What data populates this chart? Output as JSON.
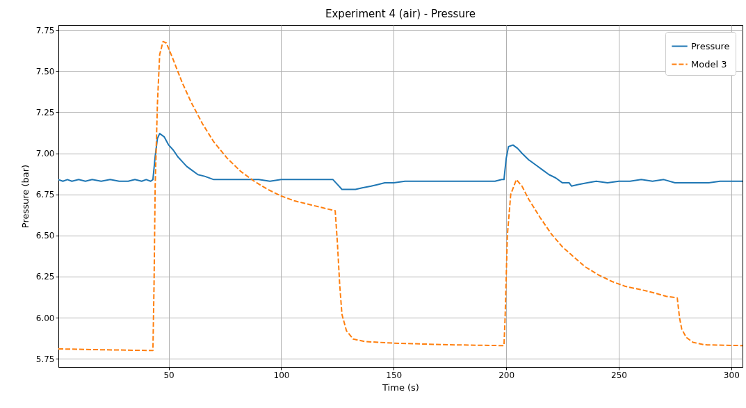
{
  "chart_data": {
    "type": "line",
    "title": "Experiment 4 (air) - Pressure",
    "xlabel": "Time (s)",
    "ylabel": "Pressure (bar)",
    "xlim": [
      1,
      305
    ],
    "xticks": [
      50,
      100,
      150,
      200,
      250,
      300
    ],
    "ylim": [
      5.7,
      7.78
    ],
    "yticks": [
      5.75,
      {
        "value": 6,
        "label": "6.00"
      },
      6.25,
      {
        "value": 6.5,
        "label": "6.50"
      },
      6.75,
      {
        "value": 7,
        "label": "7.00"
      },
      7.25,
      {
        "value": 7.5,
        "label": "7.50"
      },
      7.75
    ],
    "grid": true,
    "legend": "top right",
    "marker": "none",
    "series": [
      {
        "name": "Pressure",
        "color": "#1f77b4",
        "line_style": "solid",
        "x": [
          1,
          3,
          5,
          7,
          10,
          13,
          16,
          20,
          24,
          28,
          32,
          35,
          38,
          40,
          42,
          43,
          44,
          45,
          46,
          48,
          50,
          52,
          54,
          56,
          58,
          60,
          63,
          66,
          70,
          75,
          80,
          85,
          90,
          95,
          100,
          105,
          110,
          115,
          120,
          123,
          125,
          127,
          130,
          133,
          136,
          140,
          143,
          146,
          150,
          155,
          160,
          170,
          180,
          190,
          195,
          198,
          199,
          200,
          201,
          203,
          205,
          207,
          210,
          213,
          216,
          219,
          222,
          225,
          228,
          229,
          232,
          236,
          240,
          245,
          250,
          255,
          260,
          265,
          270,
          275,
          280,
          285,
          290,
          295,
          300,
          305
        ],
        "values": [
          6.84,
          6.83,
          6.84,
          6.83,
          6.84,
          6.83,
          6.84,
          6.83,
          6.84,
          6.83,
          6.83,
          6.84,
          6.83,
          6.84,
          6.83,
          6.84,
          6.98,
          7.09,
          7.12,
          7.1,
          7.05,
          7.02,
          6.98,
          6.95,
          6.92,
          6.9,
          6.87,
          6.86,
          6.84,
          6.84,
          6.84,
          6.84,
          6.84,
          6.83,
          6.84,
          6.84,
          6.84,
          6.84,
          6.84,
          6.84,
          6.81,
          6.78,
          6.78,
          6.78,
          6.79,
          6.8,
          6.81,
          6.82,
          6.82,
          6.83,
          6.83,
          6.83,
          6.83,
          6.83,
          6.83,
          6.84,
          6.84,
          6.97,
          7.04,
          7.05,
          7.03,
          7.0,
          6.96,
          6.93,
          6.9,
          6.87,
          6.85,
          6.82,
          6.82,
          6.8,
          6.81,
          6.82,
          6.83,
          6.82,
          6.83,
          6.83,
          6.84,
          6.83,
          6.84,
          6.82,
          6.82,
          6.82,
          6.82,
          6.83,
          6.83,
          6.83
        ]
      },
      {
        "name": "Model 3",
        "color": "#ff7f0e",
        "line_style": "dashed",
        "x": [
          1,
          20,
          43,
          43.5,
          44,
          45,
          46,
          47.5,
          49,
          52,
          56,
          60,
          65,
          70,
          76,
          82,
          88,
          94,
          100,
          106,
          112,
          118,
          124,
          125,
          126,
          127,
          129,
          132,
          137,
          150,
          175,
          199,
          199.5,
          200.5,
          202,
          204.5,
          207,
          210,
          215,
          220,
          225,
          230,
          235,
          241,
          247,
          253,
          260,
          266,
          271,
          276,
          277,
          278,
          280,
          283,
          288,
          305
        ],
        "values": [
          5.81,
          5.805,
          5.8,
          6.2,
          6.8,
          7.3,
          7.6,
          7.68,
          7.67,
          7.57,
          7.43,
          7.31,
          7.18,
          7.07,
          6.97,
          6.89,
          6.83,
          6.78,
          6.74,
          6.71,
          6.69,
          6.67,
          6.65,
          6.45,
          6.2,
          6.02,
          5.92,
          5.87,
          5.855,
          5.845,
          5.835,
          5.83,
          6.0,
          6.5,
          6.75,
          6.84,
          6.8,
          6.72,
          6.61,
          6.51,
          6.43,
          6.37,
          6.31,
          6.26,
          6.22,
          6.19,
          6.17,
          6.15,
          6.13,
          6.12,
          6.0,
          5.93,
          5.88,
          5.85,
          5.835,
          5.83
        ]
      }
    ]
  }
}
